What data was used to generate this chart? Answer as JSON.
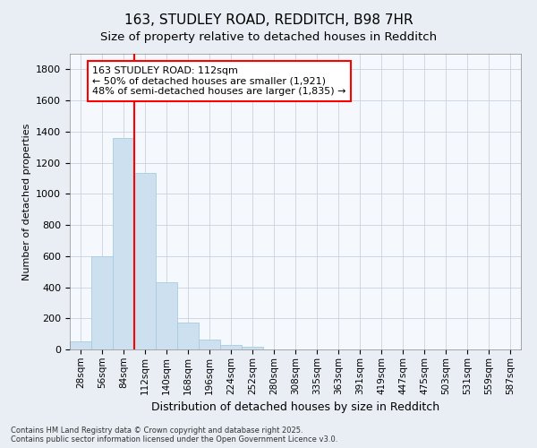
{
  "title": "163, STUDLEY ROAD, REDDITCH, B98 7HR",
  "subtitle": "Size of property relative to detached houses in Redditch",
  "xlabel": "Distribution of detached houses by size in Redditch",
  "ylabel": "Number of detached properties",
  "bar_color": "#cce0f0",
  "bar_edge_color": "#aaccdd",
  "vline_color": "red",
  "vline_x_index": 3,
  "annotation_line1": "163 STUDLEY ROAD: 112sqm",
  "annotation_line2": "← 50% of detached houses are smaller (1,921)",
  "annotation_line3": "48% of semi-detached houses are larger (1,835) →",
  "categories": [
    "28sqm",
    "56sqm",
    "84sqm",
    "112sqm",
    "140sqm",
    "168sqm",
    "196sqm",
    "224sqm",
    "252sqm",
    "280sqm",
    "308sqm",
    "335sqm",
    "363sqm",
    "391sqm",
    "419sqm",
    "447sqm",
    "475sqm",
    "503sqm",
    "531sqm",
    "559sqm",
    "587sqm"
  ],
  "values": [
    50,
    600,
    1358,
    1134,
    430,
    170,
    65,
    30,
    15,
    0,
    0,
    0,
    0,
    0,
    0,
    0,
    0,
    0,
    0,
    0,
    0
  ],
  "ylim": [
    0,
    1900
  ],
  "yticks": [
    0,
    200,
    400,
    600,
    800,
    1000,
    1200,
    1400,
    1600,
    1800
  ],
  "footer_line1": "Contains HM Land Registry data © Crown copyright and database right 2025.",
  "footer_line2": "Contains public sector information licensed under the Open Government Licence v3.0.",
  "fig_bg_color": "#e8eef4",
  "plot_bg_color": "#f5f8fc",
  "grid_color": "#c8d4e0",
  "title_fontsize": 11,
  "subtitle_fontsize": 9.5,
  "ylabel_fontsize": 8,
  "xlabel_fontsize": 9,
  "ytick_fontsize": 8,
  "xtick_fontsize": 7.5,
  "footer_fontsize": 6,
  "annotation_fontsize": 8
}
